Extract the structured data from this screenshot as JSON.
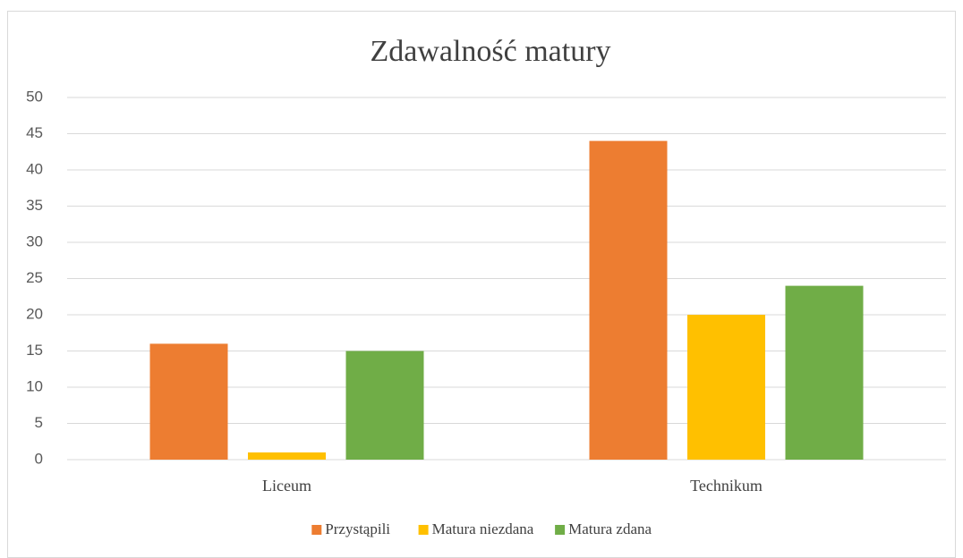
{
  "chart_data": {
    "type": "bar",
    "title": "Zdawalność matury",
    "categories": [
      "Liceum",
      "Technikum"
    ],
    "series": [
      {
        "name": "Przystąpili",
        "color": "#ed7d31",
        "values": [
          16,
          44
        ]
      },
      {
        "name": "Matura niezdana",
        "color": "#ffc000",
        "values": [
          1,
          20
        ]
      },
      {
        "name": "Matura zdana",
        "color": "#70ad47",
        "values": [
          15,
          24
        ]
      }
    ],
    "ylim": [
      0,
      50
    ],
    "yticks": [
      0,
      5,
      10,
      15,
      20,
      25,
      30,
      35,
      40,
      45,
      50
    ],
    "grid": true,
    "legend": "bottom"
  }
}
